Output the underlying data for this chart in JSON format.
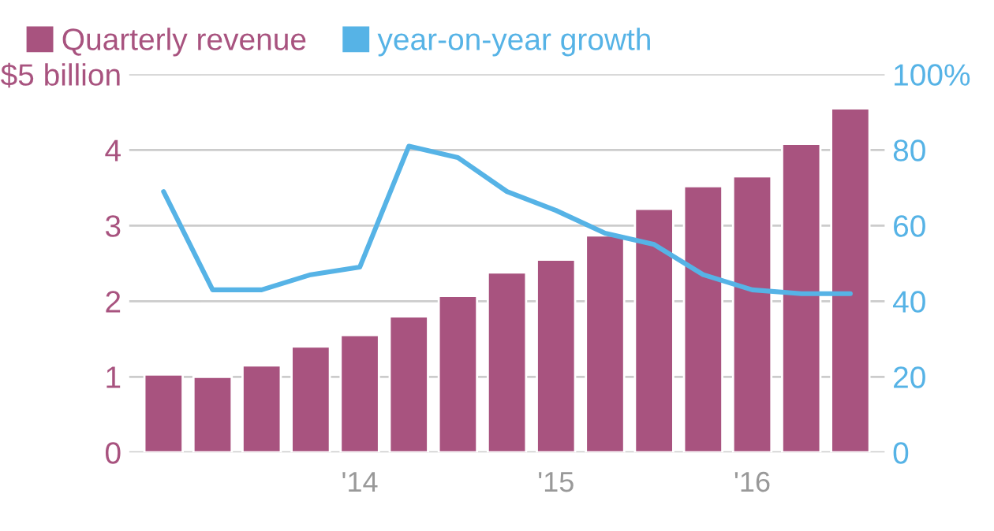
{
  "chart_data": {
    "type": "bar",
    "categories": [
      null,
      null,
      null,
      null,
      "'14",
      null,
      null,
      null,
      "'15",
      null,
      null,
      null,
      "'16",
      null,
      null
    ],
    "series": [
      {
        "name": "Quarterly revenue",
        "color": "#a8537f",
        "values": [
          1.03,
          1.0,
          1.15,
          1.4,
          1.55,
          1.8,
          2.07,
          2.38,
          2.55,
          2.87,
          3.22,
          3.52,
          3.65,
          4.08,
          4.55
        ]
      },
      {
        "name": "year-on-year growth",
        "type": "line",
        "axis": "y2",
        "color": "#56b3e6",
        "values": [
          69,
          43,
          43,
          47,
          49,
          81,
          78,
          69,
          64,
          58,
          55,
          47,
          43,
          42,
          42
        ]
      }
    ],
    "ylim": [
      0,
      5
    ],
    "yticks": [
      0,
      1,
      2,
      3,
      4,
      {
        "value": 5,
        "label": "$5 billion"
      }
    ],
    "y2lim": [
      0,
      100
    ],
    "y2ticks": [
      0,
      20,
      40,
      60,
      80,
      {
        "value": 100,
        "label": "100%"
      }
    ],
    "grid": "y",
    "legend": "top left",
    "marker": "none",
    "line_style": "solid"
  }
}
